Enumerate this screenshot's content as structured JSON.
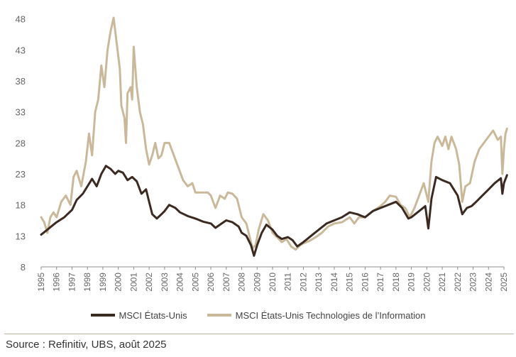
{
  "chart_data": {
    "type": "line",
    "title": "",
    "xlabel": "",
    "ylabel": "",
    "ylim": [
      8,
      49
    ],
    "xlim": [
      1995,
      2025
    ],
    "yticks": [
      "8",
      "13",
      "18",
      "23",
      "28",
      "33",
      "38",
      "43",
      "48"
    ],
    "xticks": [
      "1995",
      "1996",
      "1997",
      "1998",
      "1999",
      "2000",
      "2001",
      "2002",
      "2003",
      "2004",
      "2005",
      "2006",
      "2007",
      "2008",
      "2009",
      "2010",
      "2011",
      "2012",
      "2013",
      "2014",
      "2015",
      "2016",
      "2017",
      "2018",
      "2019",
      "2020",
      "2021",
      "2022",
      "2023",
      "2024",
      "2025"
    ],
    "series": [
      {
        "name": "MSCI États-Unis",
        "color": "#3b2a21",
        "points": [
          [
            1995.0,
            13.2
          ],
          [
            1995.3,
            13.8
          ],
          [
            1995.6,
            14.4
          ],
          [
            1996.0,
            15.2
          ],
          [
            1996.5,
            16.0
          ],
          [
            1997.0,
            17.2
          ],
          [
            1997.3,
            18.8
          ],
          [
            1997.7,
            19.8
          ],
          [
            1998.0,
            21.0
          ],
          [
            1998.3,
            22.2
          ],
          [
            1998.6,
            21.0
          ],
          [
            1998.9,
            23.0
          ],
          [
            1999.2,
            24.3
          ],
          [
            1999.5,
            23.8
          ],
          [
            1999.8,
            23.0
          ],
          [
            2000.0,
            23.5
          ],
          [
            2000.3,
            23.2
          ],
          [
            2000.6,
            22.0
          ],
          [
            2000.9,
            22.5
          ],
          [
            2001.2,
            21.8
          ],
          [
            2001.5,
            19.8
          ],
          [
            2001.8,
            20.5
          ],
          [
            2002.0,
            18.5
          ],
          [
            2002.2,
            16.5
          ],
          [
            2002.5,
            15.8
          ],
          [
            2002.8,
            16.5
          ],
          [
            2003.0,
            17.0
          ],
          [
            2003.3,
            18.0
          ],
          [
            2003.7,
            17.5
          ],
          [
            2004.0,
            16.8
          ],
          [
            2004.5,
            16.2
          ],
          [
            2005.0,
            15.8
          ],
          [
            2005.5,
            15.3
          ],
          [
            2006.0,
            15.0
          ],
          [
            2006.3,
            14.3
          ],
          [
            2006.7,
            15.0
          ],
          [
            2007.0,
            15.5
          ],
          [
            2007.4,
            15.2
          ],
          [
            2007.8,
            14.5
          ],
          [
            2008.0,
            13.5
          ],
          [
            2008.3,
            13.0
          ],
          [
            2008.6,
            11.5
          ],
          [
            2008.8,
            9.8
          ],
          [
            2009.0,
            11.5
          ],
          [
            2009.3,
            13.5
          ],
          [
            2009.6,
            14.8
          ],
          [
            2010.0,
            14.0
          ],
          [
            2010.3,
            13.0
          ],
          [
            2010.6,
            12.5
          ],
          [
            2011.0,
            12.8
          ],
          [
            2011.3,
            12.3
          ],
          [
            2011.6,
            11.3
          ],
          [
            2012.0,
            12.0
          ],
          [
            2012.5,
            13.0
          ],
          [
            2013.0,
            14.0
          ],
          [
            2013.5,
            15.0
          ],
          [
            2014.0,
            15.5
          ],
          [
            2014.5,
            16.0
          ],
          [
            2015.0,
            16.8
          ],
          [
            2015.5,
            16.5
          ],
          [
            2016.0,
            16.0
          ],
          [
            2016.5,
            17.0
          ],
          [
            2017.0,
            17.5
          ],
          [
            2017.5,
            18.0
          ],
          [
            2018.0,
            18.5
          ],
          [
            2018.4,
            17.5
          ],
          [
            2018.8,
            15.8
          ],
          [
            2019.0,
            16.0
          ],
          [
            2019.5,
            17.0
          ],
          [
            2019.9,
            17.8
          ],
          [
            2020.1,
            14.2
          ],
          [
            2020.3,
            19.0
          ],
          [
            2020.6,
            22.5
          ],
          [
            2021.0,
            22.0
          ],
          [
            2021.5,
            21.5
          ],
          [
            2022.0,
            19.5
          ],
          [
            2022.3,
            16.5
          ],
          [
            2022.6,
            17.5
          ],
          [
            2022.9,
            17.8
          ],
          [
            2023.2,
            18.5
          ],
          [
            2023.6,
            19.5
          ],
          [
            2024.0,
            20.5
          ],
          [
            2024.4,
            21.5
          ],
          [
            2024.8,
            22.3
          ],
          [
            2024.9,
            19.8
          ],
          [
            2025.0,
            21.5
          ],
          [
            2025.2,
            22.8
          ]
        ]
      },
      {
        "name": "MSCI États-Unis Technologies de l'Information",
        "color": "#c9b99a",
        "points": [
          [
            1995.0,
            16.0
          ],
          [
            1995.2,
            15.2
          ],
          [
            1995.4,
            13.5
          ],
          [
            1995.6,
            16.0
          ],
          [
            1995.8,
            16.8
          ],
          [
            1996.0,
            16.0
          ],
          [
            1996.3,
            18.5
          ],
          [
            1996.6,
            19.5
          ],
          [
            1996.9,
            18.0
          ],
          [
            1997.1,
            22.5
          ],
          [
            1997.3,
            23.5
          ],
          [
            1997.6,
            21.0
          ],
          [
            1997.9,
            25.0
          ],
          [
            1998.1,
            29.5
          ],
          [
            1998.3,
            26.0
          ],
          [
            1998.5,
            33.0
          ],
          [
            1998.7,
            35.0
          ],
          [
            1998.9,
            40.5
          ],
          [
            1999.1,
            37.0
          ],
          [
            1999.3,
            43.0
          ],
          [
            1999.5,
            46.0
          ],
          [
            1999.7,
            48.2
          ],
          [
            1999.9,
            44.0
          ],
          [
            2000.1,
            40.0
          ],
          [
            2000.2,
            34.0
          ],
          [
            2000.4,
            32.0
          ],
          [
            2000.5,
            28.0
          ],
          [
            2000.6,
            36.0
          ],
          [
            2000.8,
            37.0
          ],
          [
            2000.9,
            35.0
          ],
          [
            2001.0,
            43.5
          ],
          [
            2001.2,
            37.0
          ],
          [
            2001.4,
            33.0
          ],
          [
            2001.6,
            31.0
          ],
          [
            2001.8,
            27.0
          ],
          [
            2002.0,
            24.5
          ],
          [
            2002.2,
            26.0
          ],
          [
            2002.4,
            28.0
          ],
          [
            2002.6,
            25.5
          ],
          [
            2002.8,
            26.0
          ],
          [
            2003.0,
            28.0
          ],
          [
            2003.3,
            28.0
          ],
          [
            2003.6,
            26.0
          ],
          [
            2003.9,
            24.0
          ],
          [
            2004.2,
            22.0
          ],
          [
            2004.5,
            21.0
          ],
          [
            2004.8,
            21.5
          ],
          [
            2005.0,
            20.0
          ],
          [
            2005.4,
            20.0
          ],
          [
            2005.8,
            20.0
          ],
          [
            2006.0,
            19.5
          ],
          [
            2006.3,
            17.5
          ],
          [
            2006.6,
            19.5
          ],
          [
            2006.9,
            19.0
          ],
          [
            2007.1,
            20.0
          ],
          [
            2007.4,
            19.8
          ],
          [
            2007.7,
            19.0
          ],
          [
            2008.0,
            16.0
          ],
          [
            2008.3,
            15.0
          ],
          [
            2008.5,
            13.0
          ],
          [
            2008.7,
            11.0
          ],
          [
            2008.9,
            11.5
          ],
          [
            2009.1,
            14.0
          ],
          [
            2009.4,
            16.5
          ],
          [
            2009.7,
            15.5
          ],
          [
            2010.0,
            13.5
          ],
          [
            2010.3,
            12.8
          ],
          [
            2010.6,
            12.0
          ],
          [
            2010.9,
            12.5
          ],
          [
            2011.2,
            11.3
          ],
          [
            2011.5,
            10.8
          ],
          [
            2011.8,
            11.5
          ],
          [
            2012.0,
            11.8
          ],
          [
            2012.4,
            12.2
          ],
          [
            2012.8,
            12.8
          ],
          [
            2013.2,
            13.5
          ],
          [
            2013.6,
            14.5
          ],
          [
            2014.0,
            15.0
          ],
          [
            2014.5,
            15.2
          ],
          [
            2015.0,
            16.0
          ],
          [
            2015.3,
            15.0
          ],
          [
            2015.6,
            16.0
          ],
          [
            2016.0,
            16.0
          ],
          [
            2016.5,
            17.0
          ],
          [
            2017.0,
            17.8
          ],
          [
            2017.3,
            18.5
          ],
          [
            2017.6,
            19.5
          ],
          [
            2018.0,
            19.3
          ],
          [
            2018.3,
            18.0
          ],
          [
            2018.6,
            17.5
          ],
          [
            2018.9,
            16.0
          ],
          [
            2019.2,
            17.5
          ],
          [
            2019.5,
            19.5
          ],
          [
            2019.8,
            21.5
          ],
          [
            2020.1,
            18.5
          ],
          [
            2020.3,
            25.0
          ],
          [
            2020.5,
            28.0
          ],
          [
            2020.7,
            29.0
          ],
          [
            2021.0,
            27.5
          ],
          [
            2021.2,
            29.0
          ],
          [
            2021.4,
            27.0
          ],
          [
            2021.6,
            29.0
          ],
          [
            2021.9,
            27.0
          ],
          [
            2022.1,
            24.5
          ],
          [
            2022.3,
            18.5
          ],
          [
            2022.5,
            21.0
          ],
          [
            2022.8,
            21.5
          ],
          [
            2023.1,
            25.0
          ],
          [
            2023.4,
            27.0
          ],
          [
            2023.7,
            28.0
          ],
          [
            2024.0,
            29.0
          ],
          [
            2024.3,
            30.0
          ],
          [
            2024.6,
            28.5
          ],
          [
            2024.8,
            29.0
          ],
          [
            2024.9,
            23.0
          ],
          [
            2025.0,
            27.0
          ],
          [
            2025.1,
            29.5
          ],
          [
            2025.2,
            30.3
          ]
        ]
      }
    ]
  },
  "legend": [
    {
      "label": "MSCI États-Unis",
      "color": "#3b2a21"
    },
    {
      "label": "MSCI États-Unis Technologies de l’Information",
      "color": "#c9b99a"
    }
  ],
  "source": "Source : Refinitiv, UBS, août 2025"
}
